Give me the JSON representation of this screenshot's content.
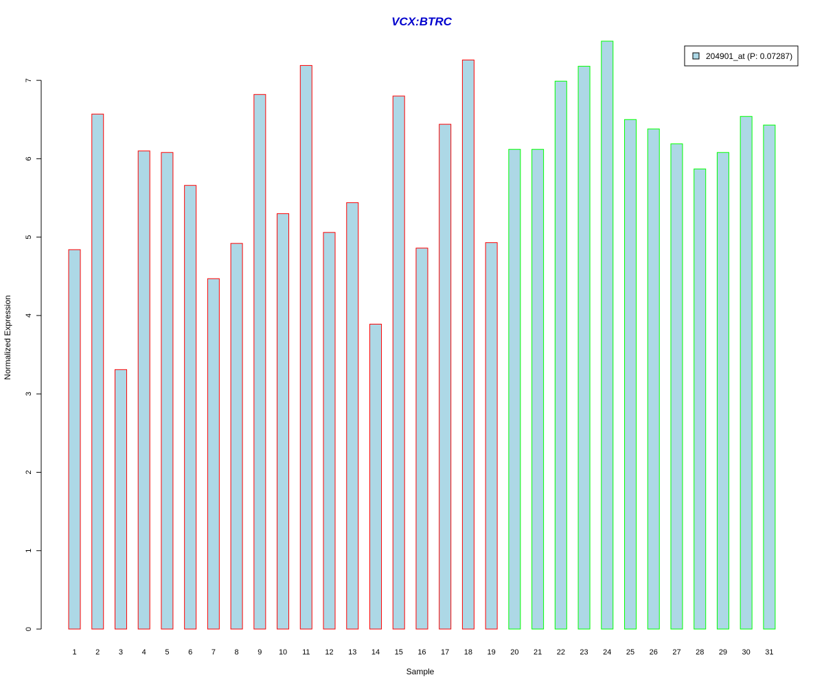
{
  "chart_data": {
    "type": "bar",
    "title": "VCX:BTRC",
    "xlabel": "Sample",
    "ylabel": "Normalized Expression",
    "ylim": [
      0,
      7.5
    ],
    "yticks": [
      0,
      1,
      2,
      3,
      4,
      5,
      6,
      7
    ],
    "grid": false,
    "legend": {
      "position": "top-right",
      "entries": [
        {
          "label": "204901_at (P: 0.07287)",
          "fill": "#add8e6"
        }
      ]
    },
    "categories": [
      "1",
      "2",
      "3",
      "4",
      "5",
      "6",
      "7",
      "8",
      "9",
      "10",
      "11",
      "12",
      "13",
      "14",
      "15",
      "16",
      "17",
      "18",
      "19",
      "20",
      "21",
      "22",
      "23",
      "24",
      "25",
      "26",
      "27",
      "28",
      "29",
      "30",
      "31"
    ],
    "series": [
      {
        "name": "204901_at (P: 0.07287)",
        "fill": "#add8e6",
        "values": [
          4.84,
          6.57,
          3.31,
          6.1,
          6.08,
          5.66,
          4.47,
          4.92,
          6.82,
          5.3,
          7.19,
          5.06,
          5.44,
          3.89,
          6.8,
          4.86,
          6.44,
          7.26,
          4.93,
          6.12,
          6.12,
          6.99,
          7.18,
          7.5,
          6.5,
          6.38,
          6.19,
          5.87,
          6.08,
          6.54,
          6.43
        ]
      }
    ],
    "groups": [
      {
        "from": 1,
        "to": 19,
        "border_color": "#ff0000"
      },
      {
        "from": 20,
        "to": 31,
        "border_color": "#00ff00"
      }
    ],
    "colors": {
      "title": "#0000cd",
      "bar_fill": "#add8e6",
      "axis": "#000000"
    }
  }
}
